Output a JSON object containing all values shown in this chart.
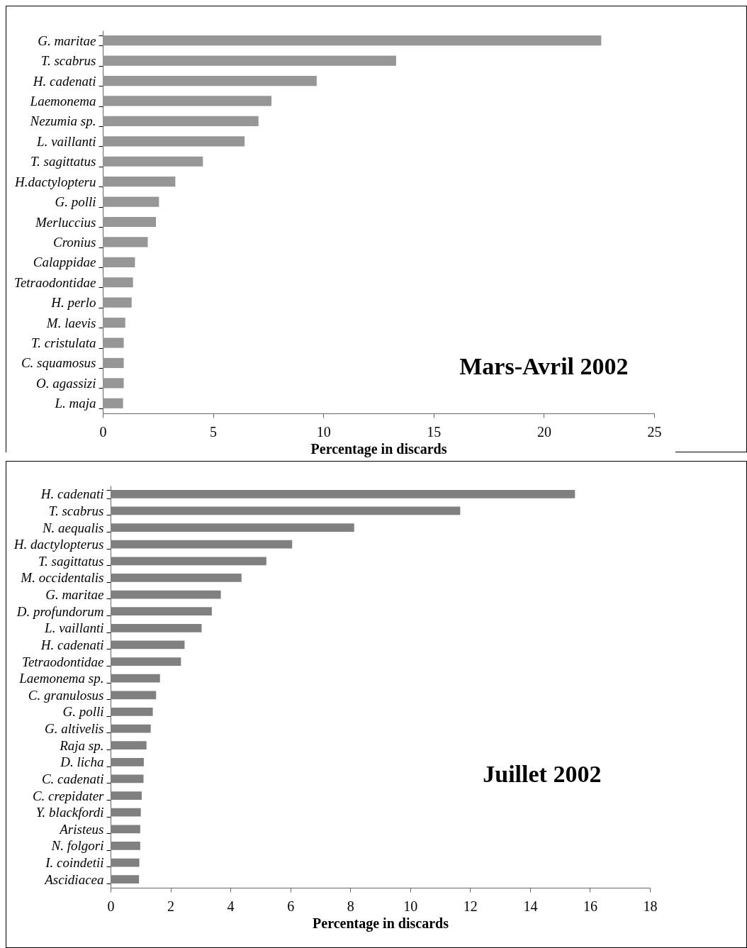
{
  "chart_data": [
    {
      "type": "bar",
      "orientation": "horizontal",
      "title": "Mars-Avril 2002",
      "xlabel": "Percentage in discards",
      "color": "#969696",
      "categories": [
        "G. maritae",
        "T. scabrus",
        "H. cadenati",
        "Laemonema",
        "Nezumia sp.",
        "L. vaillanti",
        "T. sagittatus",
        "H.dactylopteru",
        "G. polli",
        "Merluccius",
        "Cronius",
        "Calappidae",
        "Tetraodontidae",
        "H. perlo",
        "M. laevis",
        "T. cristulata",
        "C. squamosus",
        "O. agassizi",
        "L. maja"
      ],
      "values": [
        22.6,
        13.3,
        9.7,
        7.65,
        7.06,
        6.43,
        4.54,
        3.29,
        2.55,
        2.41,
        2.04,
        1.46,
        1.37,
        1.31,
        1.02,
        0.95,
        0.95,
        0.95,
        0.92
      ],
      "xlim": [
        0,
        25
      ],
      "xticks": [
        0,
        5,
        10,
        15,
        20,
        25
      ]
    },
    {
      "type": "bar",
      "orientation": "horizontal",
      "title": "Juillet 2002",
      "xlabel": "Percentage in discards",
      "color": "#808080",
      "categories": [
        "H. cadenati",
        "T. scabrus",
        "N. aequalis",
        "H. dactylopterus",
        "T. sagittatus",
        "M. occidentalis",
        "G. maritae",
        "D. profundorum",
        "L. vaillanti",
        "H. cadenati",
        "Tetraodontidae",
        "Laemonema sp.",
        "C. granulosus",
        "G. polli",
        "G. altivelis",
        "Raja sp.",
        "D. licha",
        "C. cadenati",
        "C. crepidater",
        "Y. blackfordi",
        "Aristeus",
        "N. folgori",
        "I. coindetii",
        "Ascidiacea"
      ],
      "values": [
        15.5,
        11.67,
        8.13,
        6.06,
        5.2,
        4.37,
        3.68,
        3.38,
        3.04,
        2.47,
        2.35,
        1.65,
        1.52,
        1.41,
        1.34,
        1.2,
        1.11,
        1.1,
        1.04,
        1.01,
        0.99,
        0.99,
        0.96,
        0.95
      ],
      "xlim": [
        0,
        18
      ],
      "xticks": [
        0,
        2,
        4,
        6,
        8,
        10,
        12,
        14,
        16,
        18
      ]
    }
  ]
}
